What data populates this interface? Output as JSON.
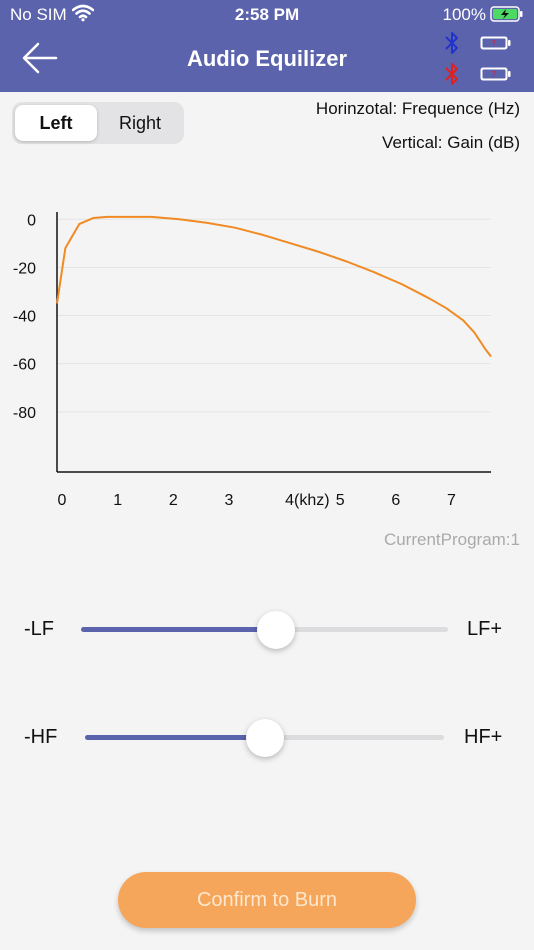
{
  "status_bar": {
    "carrier": "No SIM",
    "time": "2:58 PM",
    "battery_pct": "100%"
  },
  "header": {
    "title": "Audio Equilizer",
    "bt_colors": [
      "#2233cc",
      "#e02020"
    ]
  },
  "segment": {
    "options": [
      "Left",
      "Right"
    ],
    "selected": "Left"
  },
  "axis_notes": {
    "horizontal": "Horinzotal: Frequence (Hz)",
    "vertical": "Vertical: Gain (dB)"
  },
  "chart_data": {
    "type": "line",
    "title": "",
    "xlabel": "",
    "ylabel": "",
    "x_ticks": [
      "0",
      "1",
      "2",
      "3",
      "4(khz)",
      "5",
      "6",
      "7"
    ],
    "y_ticks": [
      "0",
      "-20",
      "-40",
      "-60",
      "-80"
    ],
    "xlim": [
      0,
      7.8
    ],
    "ylim": [
      -105,
      8
    ],
    "grid": true,
    "series": [
      {
        "color": "#f08a24",
        "x": [
          0,
          0.15,
          0.4,
          0.65,
          0.9,
          1.25,
          1.7,
          2.2,
          2.7,
          3.2,
          3.7,
          4.2,
          4.7,
          5.2,
          5.7,
          6.2,
          6.7,
          7.0,
          7.3,
          7.5,
          7.7,
          7.8
        ],
        "y": [
          -35,
          -12,
          -2,
          0.5,
          1,
          1,
          1,
          0,
          -1.5,
          -3.5,
          -6.5,
          -10,
          -13.5,
          -17.5,
          -22,
          -27,
          -33,
          -37,
          -42,
          -47,
          -54,
          -57
        ]
      }
    ]
  },
  "current_program": "CurrentProgram:1",
  "sliders": {
    "lf": {
      "min_label": "-LF",
      "max_label": "LF+",
      "value_fraction": 0.53
    },
    "hf": {
      "min_label": "-HF",
      "max_label": "HF+",
      "value_fraction": 0.5
    }
  },
  "confirm_label": "Confirm to Burn"
}
